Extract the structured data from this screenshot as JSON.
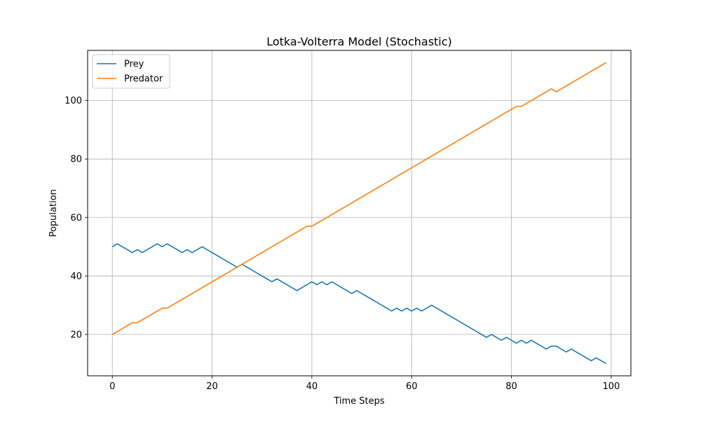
{
  "chart_data": {
    "type": "line",
    "title": "Lotka-Volterra Model (Stochastic)",
    "xlabel": "Time Steps",
    "ylabel": "Population",
    "xlim": [
      -4.95,
      103.95
    ],
    "ylim": [
      5.85,
      117.15
    ],
    "xticks": [
      0,
      20,
      40,
      60,
      80,
      100
    ],
    "yticks": [
      20,
      40,
      60,
      80,
      100
    ],
    "grid": true,
    "legend_position": "top-left",
    "series": [
      {
        "name": "Prey",
        "color": "#1f77b4",
        "x": [
          0,
          1,
          2,
          3,
          4,
          5,
          6,
          7,
          8,
          9,
          10,
          11,
          12,
          13,
          14,
          15,
          16,
          17,
          18,
          19,
          20,
          21,
          22,
          23,
          24,
          25,
          26,
          27,
          28,
          29,
          30,
          31,
          32,
          33,
          34,
          35,
          36,
          37,
          38,
          39,
          40,
          41,
          42,
          43,
          44,
          45,
          46,
          47,
          48,
          49,
          50,
          51,
          52,
          53,
          54,
          55,
          56,
          57,
          58,
          59,
          60,
          61,
          62,
          63,
          64,
          65,
          66,
          67,
          68,
          69,
          70,
          71,
          72,
          73,
          74,
          75,
          76,
          77,
          78,
          79,
          80,
          81,
          82,
          83,
          84,
          85,
          86,
          87,
          88,
          89,
          90,
          91,
          92,
          93,
          94,
          95,
          96,
          97,
          98,
          99
        ],
        "y": [
          50,
          51,
          50,
          49,
          48,
          49,
          48,
          49,
          50,
          51,
          50,
          51,
          50,
          49,
          48,
          49,
          48,
          49,
          50,
          49,
          48,
          47,
          46,
          45,
          44,
          43,
          44,
          43,
          42,
          41,
          40,
          39,
          38,
          39,
          38,
          37,
          36,
          35,
          36,
          37,
          38,
          37,
          38,
          37,
          38,
          37,
          36,
          35,
          34,
          35,
          34,
          33,
          32,
          31,
          30,
          29,
          28,
          29,
          28,
          29,
          28,
          29,
          28,
          29,
          30,
          29,
          28,
          27,
          26,
          25,
          24,
          23,
          22,
          21,
          20,
          19,
          20,
          19,
          18,
          19,
          18,
          17,
          18,
          17,
          18,
          17,
          16,
          15,
          16,
          16,
          15,
          14,
          15,
          14,
          13,
          12,
          11,
          12,
          11,
          10
        ]
      },
      {
        "name": "Predator",
        "color": "#ff7f0e",
        "x": [
          0,
          1,
          2,
          3,
          4,
          5,
          6,
          7,
          8,
          9,
          10,
          11,
          12,
          13,
          14,
          15,
          16,
          17,
          18,
          19,
          20,
          21,
          22,
          23,
          24,
          25,
          26,
          27,
          28,
          29,
          30,
          31,
          32,
          33,
          34,
          35,
          36,
          37,
          38,
          39,
          40,
          41,
          42,
          43,
          44,
          45,
          46,
          47,
          48,
          49,
          50,
          51,
          52,
          53,
          54,
          55,
          56,
          57,
          58,
          59,
          60,
          61,
          62,
          63,
          64,
          65,
          66,
          67,
          68,
          69,
          70,
          71,
          72,
          73,
          74,
          75,
          76,
          77,
          78,
          79,
          80,
          81,
          82,
          83,
          84,
          85,
          86,
          87,
          88,
          89,
          90,
          91,
          92,
          93,
          94,
          95,
          96,
          97,
          98,
          99
        ],
        "y": [
          20,
          21,
          22,
          23,
          24,
          24,
          25,
          26,
          27,
          28,
          29,
          29,
          30,
          31,
          32,
          33,
          34,
          35,
          36,
          37,
          38,
          39,
          40,
          41,
          42,
          43,
          44,
          45,
          46,
          47,
          48,
          49,
          50,
          51,
          52,
          53,
          54,
          55,
          56,
          57,
          57,
          58,
          59,
          60,
          61,
          62,
          63,
          64,
          65,
          66,
          67,
          68,
          69,
          70,
          71,
          72,
          73,
          74,
          75,
          76,
          77,
          78,
          79,
          80,
          81,
          82,
          83,
          84,
          85,
          86,
          87,
          88,
          89,
          90,
          91,
          92,
          93,
          94,
          95,
          96,
          97,
          98,
          98,
          99,
          100,
          101,
          102,
          103,
          104,
          103,
          104,
          105,
          106,
          107,
          108,
          109,
          110,
          111,
          112,
          113
        ]
      }
    ]
  }
}
